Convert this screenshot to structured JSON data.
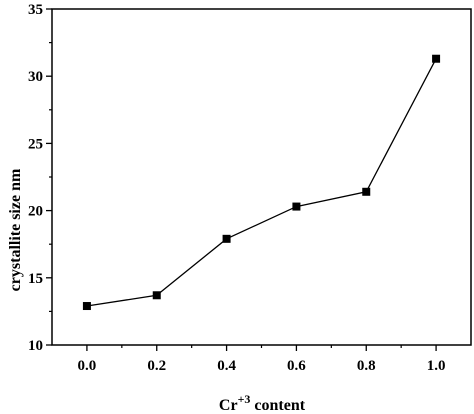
{
  "chart_data": {
    "type": "line",
    "title": "",
    "xlabel_base": "Cr",
    "xlabel_sup": "+3",
    "xlabel_rest": " content",
    "ylabel": "crystallite size nm",
    "x": [
      0.0,
      0.2,
      0.4,
      0.6,
      0.8,
      1.0
    ],
    "series": [
      {
        "values": [
          12.9,
          13.7,
          17.9,
          20.3,
          21.4,
          31.3
        ],
        "color": "#000000",
        "marker": "square"
      }
    ],
    "xlim": [
      -0.1,
      1.1
    ],
    "ylim": [
      10,
      35
    ],
    "xticks": [
      "0.0",
      "0.2",
      "0.4",
      "0.6",
      "0.8",
      "1.0"
    ],
    "yticks": [
      "10",
      "15",
      "20",
      "25",
      "30",
      "35"
    ],
    "grid": false,
    "legend": "none"
  }
}
